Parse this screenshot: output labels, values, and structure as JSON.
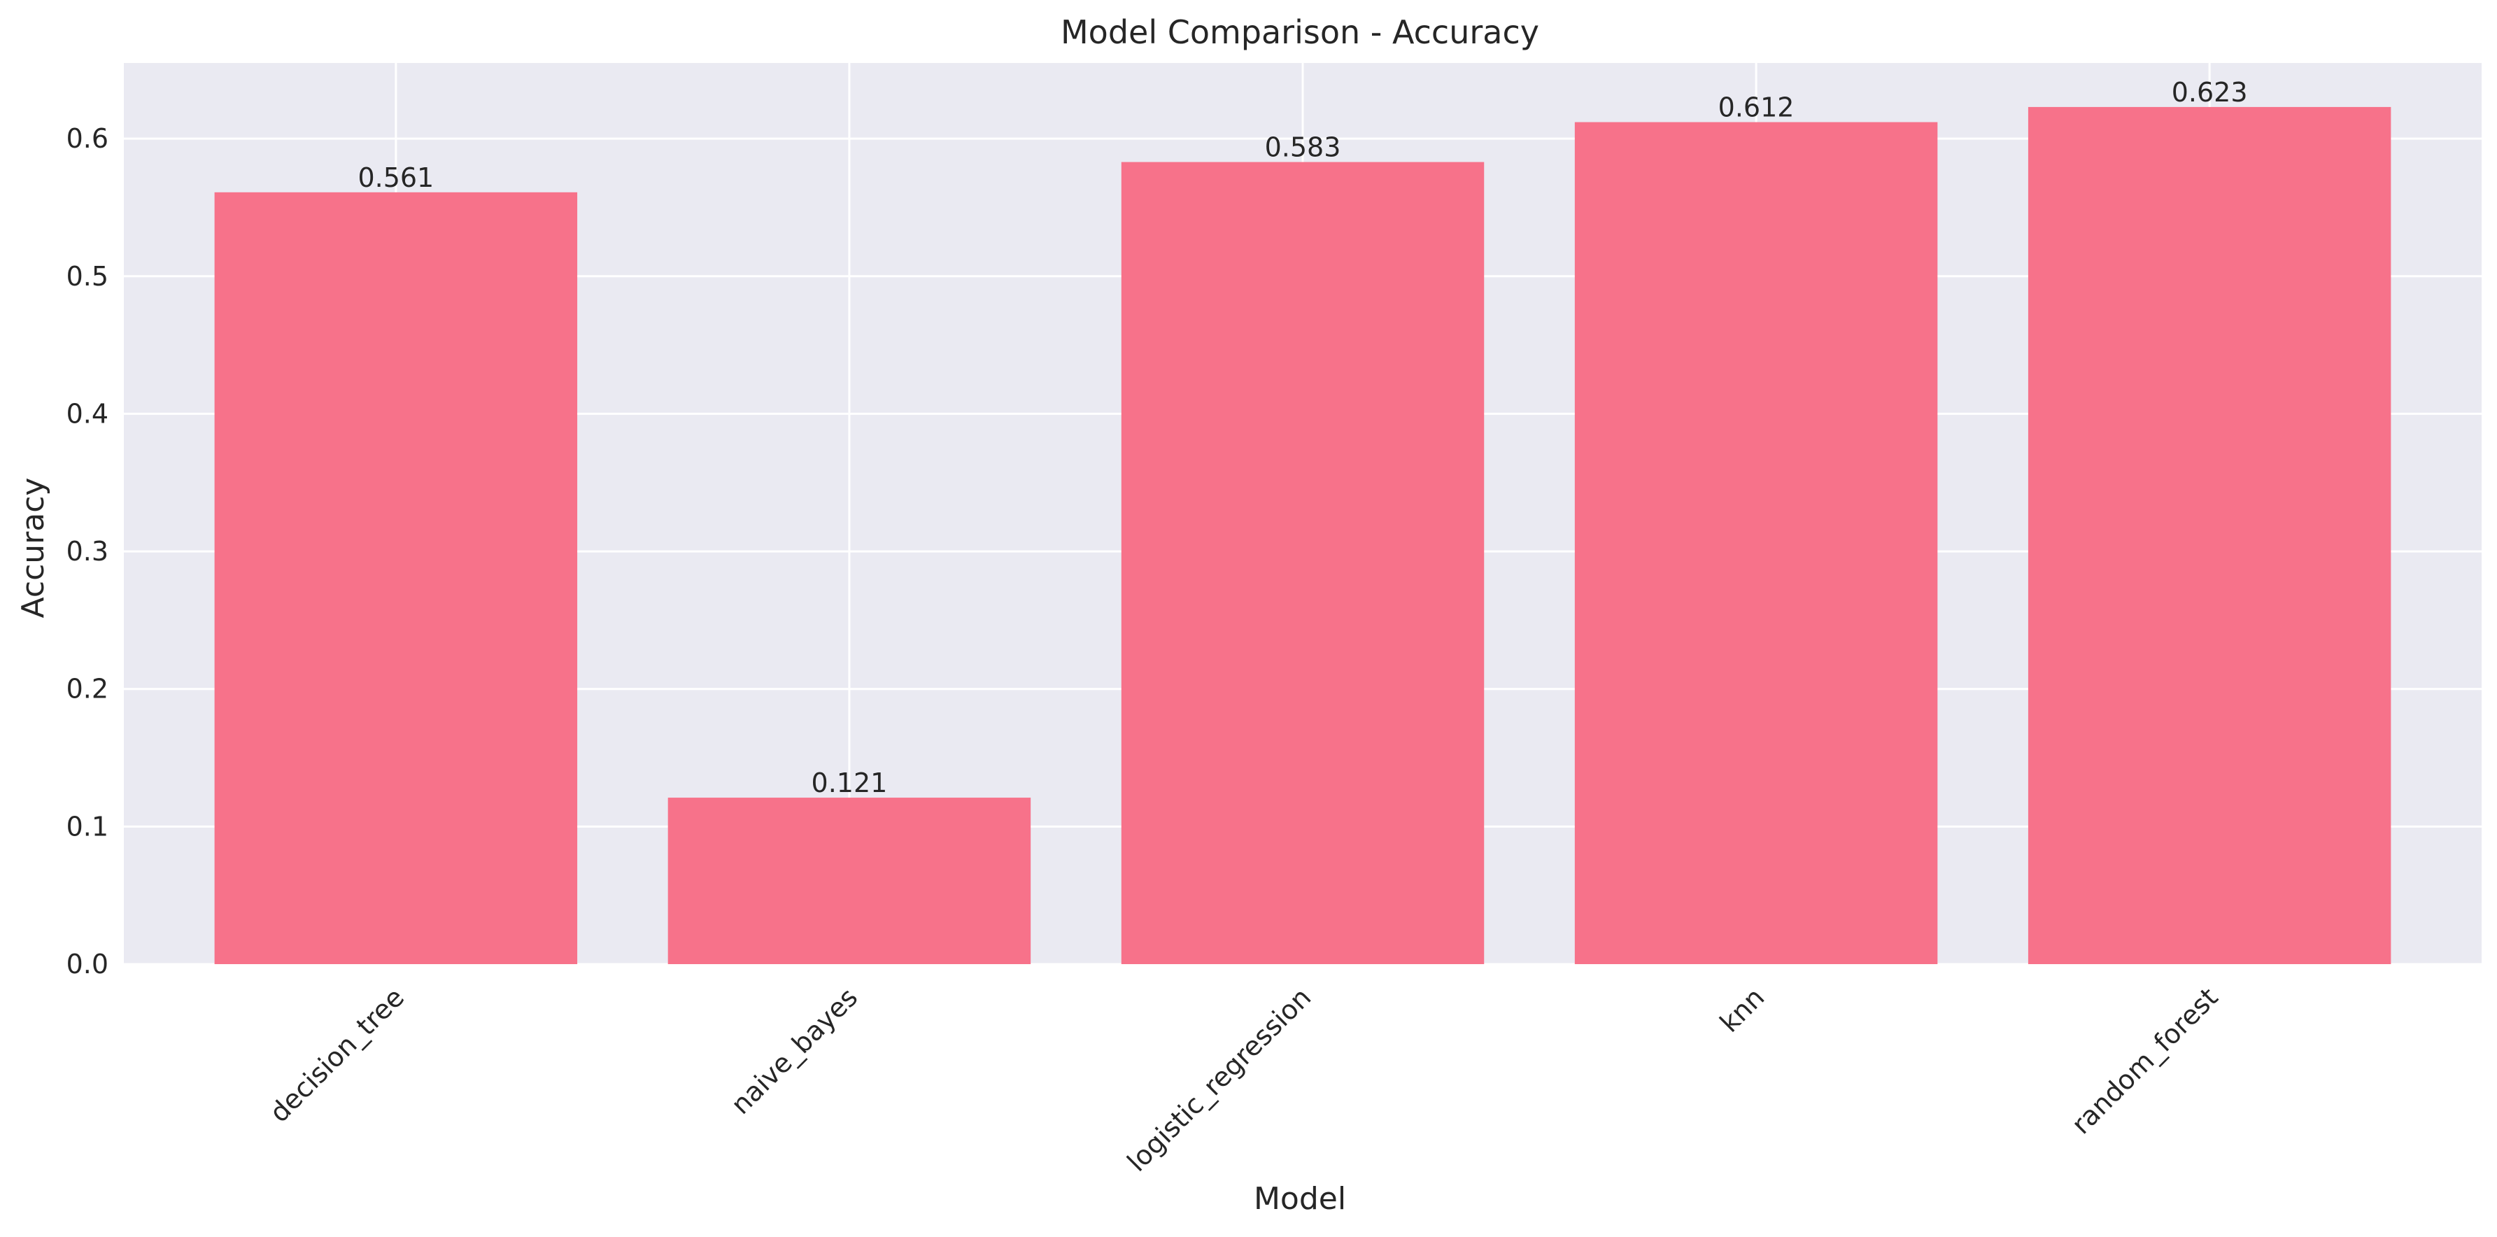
{
  "chart_data": {
    "type": "bar",
    "title": "Model Comparison - Accuracy",
    "xlabel": "Model",
    "ylabel": "Accuracy",
    "categories": [
      "decision_tree",
      "naive_bayes",
      "logistic_regression",
      "knn",
      "random_forest"
    ],
    "values": [
      0.561,
      0.121,
      0.583,
      0.612,
      0.623
    ],
    "value_labels": [
      "0.561",
      "0.121",
      "0.583",
      "0.612",
      "0.623"
    ],
    "ylim": [
      0,
      0.655
    ],
    "yticks": [
      0.0,
      0.1,
      0.2,
      0.3,
      0.4,
      0.5,
      0.6
    ],
    "ytick_labels": [
      "0.0",
      "0.1",
      "0.2",
      "0.3",
      "0.4",
      "0.5",
      "0.6"
    ],
    "xtick_rotation_deg": 45,
    "grid": true,
    "legend": false,
    "colors": {
      "bar": "#f7728a",
      "plot_background": "#eaeaf2",
      "grid": "#ffffff",
      "text": "#262626"
    }
  }
}
